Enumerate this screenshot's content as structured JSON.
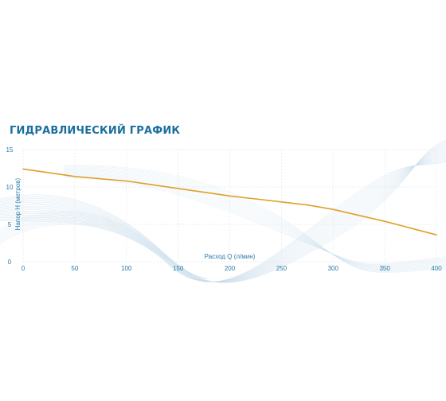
{
  "chart_data": {
    "type": "line",
    "title": "ГИДРАВЛИЧЕСКИЙ ГРАФИК",
    "xlabel": "Расход Q (л/мин)",
    "ylabel": "Напор H (метров)",
    "xlim": [
      0,
      400
    ],
    "ylim": [
      0,
      15
    ],
    "xticks": [
      0,
      50,
      100,
      150,
      200,
      250,
      300,
      350,
      400
    ],
    "yticks": [
      0,
      5,
      10,
      15
    ],
    "grid": true,
    "legend": "none",
    "series": [
      {
        "color": "#e0a02a",
        "x": [
          0,
          25,
          50,
          75,
          100,
          125,
          150,
          175,
          200,
          225,
          250,
          275,
          300,
          325,
          350,
          375,
          400
        ],
        "y": [
          12.4,
          11.9,
          11.4,
          11.1,
          10.8,
          10.3,
          9.8,
          9.3,
          8.8,
          8.4,
          8.0,
          7.6,
          7.0,
          6.2,
          5.4,
          4.5,
          3.6
        ]
      }
    ]
  },
  "colors": {
    "title": "#1a6e9e",
    "axis_text": "#2b7aa8",
    "grid": "#dfe8ef",
    "decor_waves": "#c9dcea"
  }
}
